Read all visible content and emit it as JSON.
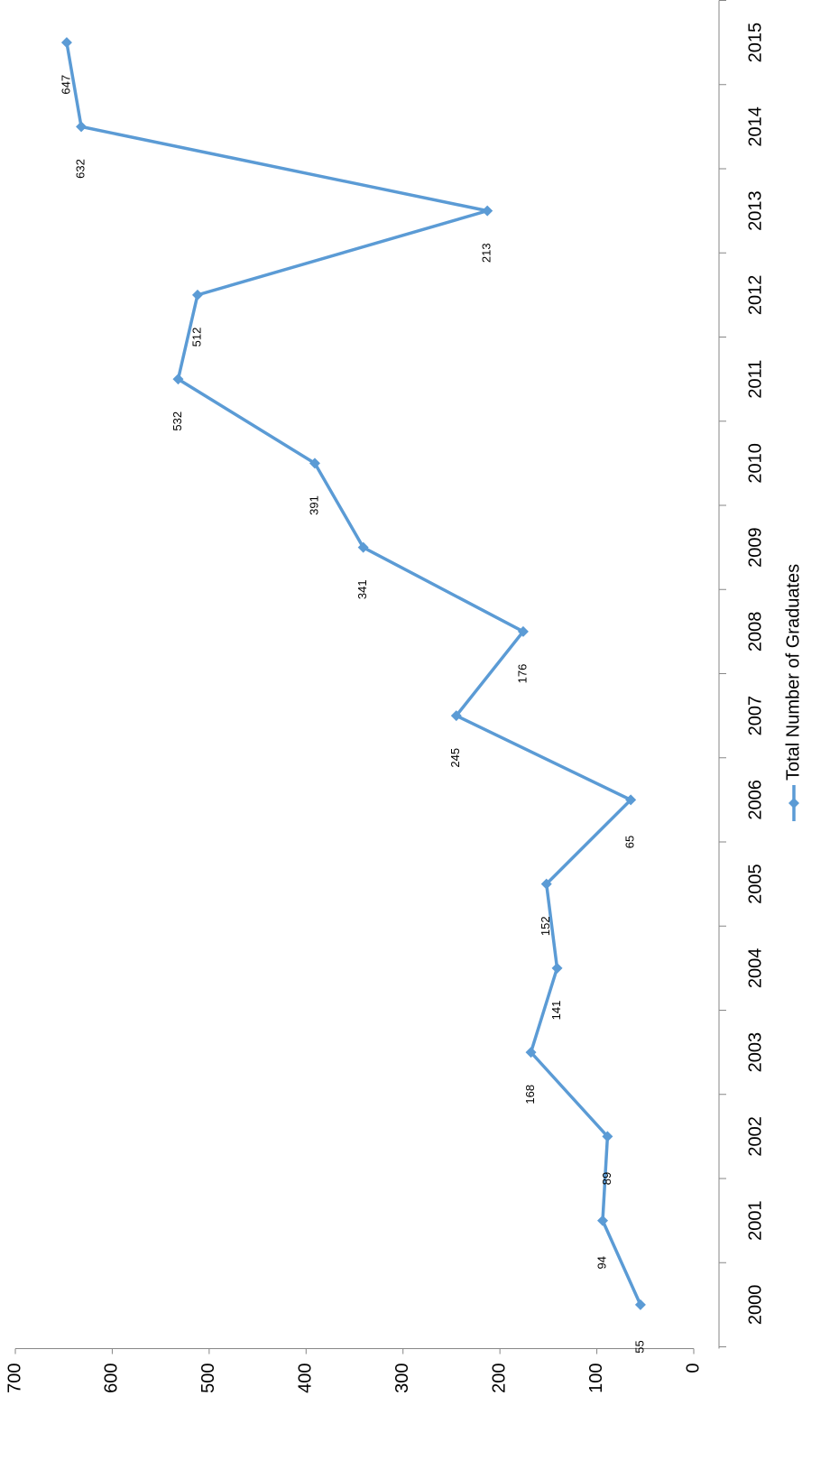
{
  "chart_data": {
    "type": "line",
    "categories": [
      "2000",
      "2001",
      "2002",
      "2003",
      "2004",
      "2005",
      "2006",
      "2007",
      "2008",
      "2009",
      "2010",
      "2011",
      "2012",
      "2013",
      "2014",
      "2015"
    ],
    "series": [
      {
        "name": "Total Number of Graduates",
        "color": "#5b9bd5",
        "values": [
          55,
          94,
          89,
          168,
          141,
          152,
          65,
          245,
          176,
          341,
          391,
          532,
          512,
          213,
          632,
          647
        ]
      }
    ],
    "ylim": [
      0,
      700
    ],
    "yticks": [
      0,
      100,
      200,
      300,
      400,
      500,
      600,
      700
    ],
    "grid": false,
    "rotation": -90,
    "legend": "bottom"
  }
}
